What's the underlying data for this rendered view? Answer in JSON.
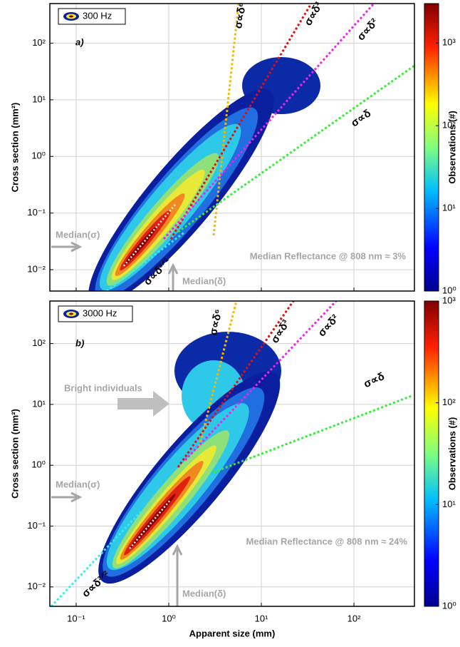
{
  "chart_data": [
    {
      "type": "density",
      "label": "a)",
      "legend": "300 Hz",
      "ylabel": "Cross section (mm²)",
      "xlim": [
        0.052,
        450
      ],
      "ylim": [
        0.0042,
        500
      ],
      "log_x": true,
      "log_y": true,
      "grid": true,
      "yticks": [
        {
          "value": 0.01,
          "label": "10⁻²"
        },
        {
          "value": 0.1,
          "label": "10⁻¹"
        },
        {
          "value": 1,
          "label": "10⁰"
        },
        {
          "value": 10,
          "label": "10¹"
        },
        {
          "value": 100,
          "label": "10²"
        }
      ],
      "colorbar": {
        "label": "Observations (#)",
        "lim": [
          1,
          3000
        ],
        "log": true,
        "ticks": [
          {
            "value": 1,
            "label": "10⁰"
          },
          {
            "value": 10,
            "label": "10¹"
          },
          {
            "value": 100,
            "label": "10²"
          },
          {
            "value": 1000,
            "label": "10³"
          }
        ]
      },
      "annotations": {
        "median_sigma": "Median(σ)",
        "median_delta": "Median(δ)",
        "reflectance": "Median Reflectance @ 808 nm ≈ 3%",
        "fit_6": "σ∝δ⁶",
        "fit_3": "σ∝δ³",
        "fit_2": "σ∝δ²",
        "fit_1": "σ∝δ",
        "fit_32": "σ∝δ³ᐟ²"
      }
    },
    {
      "type": "density",
      "label": "b)",
      "legend": "3000 Hz",
      "ylabel": "Cross section (mm²)",
      "xlabel": "Apparent size (mm)",
      "xlim": [
        0.052,
        450
      ],
      "ylim": [
        0.0048,
        500
      ],
      "log_x": true,
      "log_y": true,
      "grid": true,
      "xticks": [
        {
          "value": 0.1,
          "label": "10⁻¹"
        },
        {
          "value": 1,
          "label": "10⁰"
        },
        {
          "value": 10,
          "label": "10¹"
        },
        {
          "value": 100,
          "label": "10²"
        }
      ],
      "yticks": [
        {
          "value": 0.01,
          "label": "10⁻²"
        },
        {
          "value": 0.1,
          "label": "10⁻¹"
        },
        {
          "value": 1,
          "label": "10⁰"
        },
        {
          "value": 10,
          "label": "10¹"
        },
        {
          "value": 100,
          "label": "10²"
        }
      ],
      "colorbar": {
        "label": "Observations (#)",
        "lim": [
          1,
          1000
        ],
        "log": true,
        "ticks": [
          {
            "value": 1,
            "label": "10⁰"
          },
          {
            "value": 10,
            "label": "10¹"
          },
          {
            "value": 100,
            "label": "10²"
          },
          {
            "value": 1000,
            "label": "10³"
          }
        ]
      },
      "annotations": {
        "median_sigma": "Median(σ)",
        "median_delta": "Median(δ)",
        "reflectance": "Median Reflectance @ 808 nm ≈ 24%",
        "bright": "Bright individuals",
        "fit_6": "σ∝δ⁶",
        "fit_3": "σ∝δ³",
        "fit_2": "σ∝δ²",
        "fit_1": "σ∝δ",
        "fit_32": "σ∝δ³ᐟ²"
      }
    }
  ]
}
